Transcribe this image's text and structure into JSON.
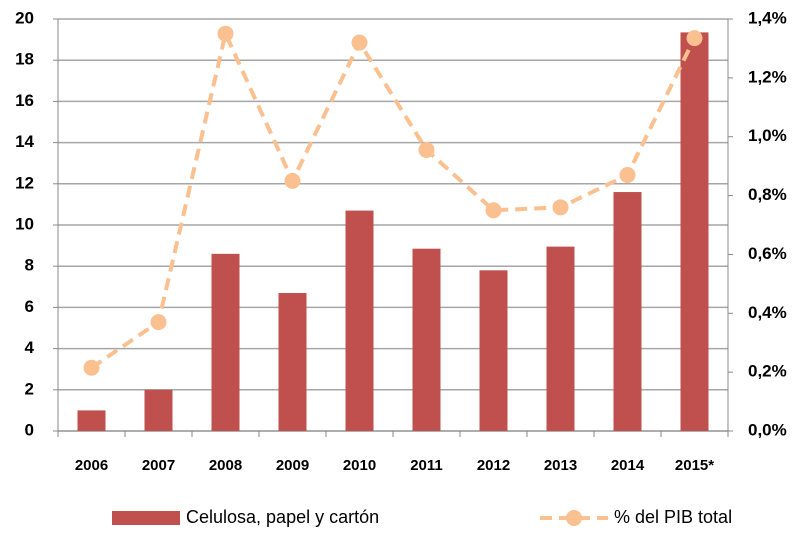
{
  "chart_data": {
    "type": "bar",
    "categories": [
      "2006",
      "2007",
      "2008",
      "2009",
      "2010",
      "2011",
      "2012",
      "2013",
      "2014",
      "2015*"
    ],
    "series": [
      {
        "name": "Celulosa, papel y cartón",
        "type": "bar",
        "color": "#c0504d",
        "values": [
          1.0,
          2.0,
          8.6,
          6.7,
          10.7,
          8.85,
          7.8,
          8.95,
          11.6,
          19.35
        ]
      },
      {
        "name": "% del PIB total",
        "type": "line",
        "axis": "y2",
        "color": "#fac090",
        "values": [
          0.215,
          0.37,
          1.35,
          0.85,
          1.32,
          0.955,
          0.75,
          0.76,
          0.87,
          1.335
        ]
      }
    ],
    "ylim": [
      0,
      20
    ],
    "yticks": [
      0,
      2,
      4,
      6,
      8,
      10,
      12,
      14,
      16,
      18,
      20
    ],
    "y2lim": [
      0,
      1.4
    ],
    "y2ticks": [
      {
        "value": 0,
        "label": "0,0%"
      },
      {
        "value": 0.2,
        "label": "0,2%"
      },
      {
        "value": 0.4,
        "label": "0,4%"
      },
      {
        "value": 0.6,
        "label": "0,6%"
      },
      {
        "value": 0.8,
        "label": "0,8%"
      },
      {
        "value": 1.0,
        "label": "1,0%"
      },
      {
        "value": 1.2,
        "label": "1,2%"
      },
      {
        "value": 1.4,
        "label": "1,4%"
      }
    ],
    "grid": true,
    "legend": "bottom"
  }
}
